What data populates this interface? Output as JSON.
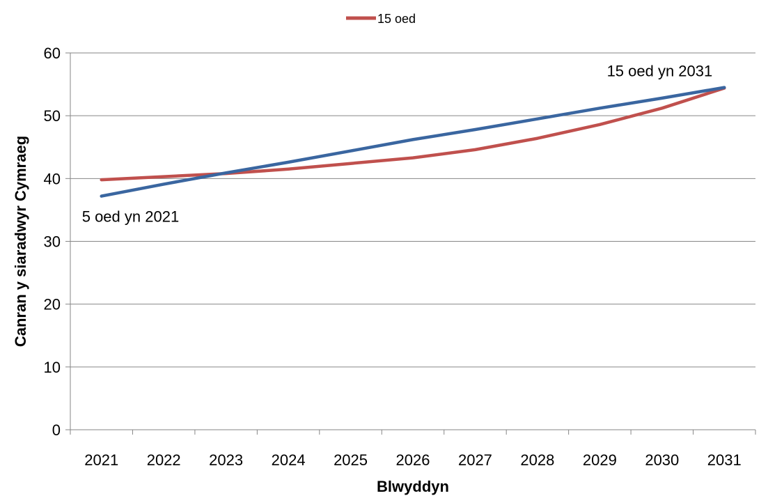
{
  "chart_data": {
    "type": "line",
    "title": "",
    "xlabel": "Blwyddyn",
    "ylabel": "Canran y siaradwyr Cymraeg",
    "categories": [
      "2021",
      "2022",
      "2023",
      "2024",
      "2025",
      "2026",
      "2027",
      "2028",
      "2029",
      "2030",
      "2031"
    ],
    "ylim": [
      0,
      60
    ],
    "yticks": [
      0,
      10,
      20,
      30,
      40,
      50,
      60
    ],
    "grid": true,
    "legend": {
      "placement": "top-center",
      "entries": [
        "15 oed"
      ]
    },
    "series": [
      {
        "name": "15 oed",
        "color": "#C0504D",
        "values": [
          39.8,
          40.3,
          40.8,
          41.5,
          42.4,
          43.3,
          44.6,
          46.4,
          48.6,
          51.2,
          54.4
        ]
      },
      {
        "color": "#3A66A0",
        "values": [
          37.2,
          39.1,
          40.9,
          42.6,
          44.4,
          46.2,
          47.8,
          49.5,
          51.2,
          52.8,
          54.5
        ]
      }
    ],
    "annotations": [
      {
        "text": "5 oed yn 2021",
        "x": "2021",
        "y": 37.2
      },
      {
        "text": "15 oed yn 2031",
        "x": "2031",
        "y": 54.5
      }
    ]
  }
}
